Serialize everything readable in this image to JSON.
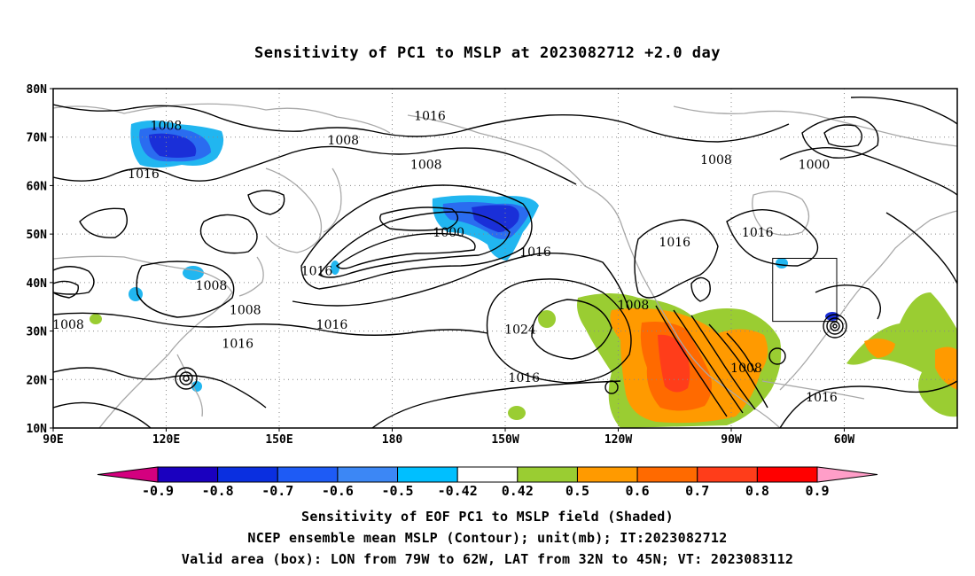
{
  "title": "Sensitivity of PC1 to MSLP at 2023082712 +2.0 day",
  "lat_ticks": [
    "10N",
    "20N",
    "30N",
    "40N",
    "50N",
    "60N",
    "70N",
    "80N"
  ],
  "lon_ticks": [
    "90E",
    "120E",
    "150E",
    "180",
    "150W",
    "120W",
    "90W",
    "60W"
  ],
  "contour_labels": [
    {
      "text": "1008",
      "lon": 120,
      "lat": 71.5
    },
    {
      "text": "1016",
      "lon": 114,
      "lat": 61.5
    },
    {
      "text": "1008",
      "lon": 167,
      "lat": 68.5
    },
    {
      "text": "1016",
      "lon": 190,
      "lat": 73.5
    },
    {
      "text": "1008",
      "lon": 189,
      "lat": 63.5
    },
    {
      "text": "1000",
      "lon": 195,
      "lat": 49.5
    },
    {
      "text": "1016",
      "lon": 160,
      "lat": 41.5
    },
    {
      "text": "1008",
      "lon": 132,
      "lat": 38.5
    },
    {
      "text": "1008",
      "lon": 94,
      "lat": 30.5
    },
    {
      "text": "1008",
      "lon": 141,
      "lat": 33.5
    },
    {
      "text": "1016",
      "lon": 139,
      "lat": 26.5
    },
    {
      "text": "1016",
      "lon": 164,
      "lat": 30.5
    },
    {
      "text": "1016",
      "lon": 218,
      "lat": 45.5
    },
    {
      "text": "1024",
      "lon": 214,
      "lat": 29.5
    },
    {
      "text": "1016",
      "lon": 215,
      "lat": 19.5
    },
    {
      "text": "1008",
      "lon": 244,
      "lat": 34.5
    },
    {
      "text": "1016",
      "lon": 255,
      "lat": 47.5
    },
    {
      "text": "1016",
      "lon": 277,
      "lat": 49.5
    },
    {
      "text": "1008",
      "lon": 274,
      "lat": 21.5
    },
    {
      "text": "1008",
      "lon": 266,
      "lat": 64.5
    },
    {
      "text": "1000",
      "lon": 292,
      "lat": 63.5
    },
    {
      "text": "1016",
      "lon": 294,
      "lat": 15.5
    }
  ],
  "valid_box": {
    "lon_min": 281,
    "lon_max": 298,
    "lat_min": 32,
    "lat_max": 45
  },
  "colorbar": {
    "labels": [
      "-0.9",
      "-0.8",
      "-0.7",
      "-0.6",
      "-0.5",
      "-0.42",
      "0.42",
      "0.5",
      "0.6",
      "0.7",
      "0.8",
      "0.9"
    ],
    "colors": [
      "#d4007f",
      "#1a00bf",
      "#0a2fe0",
      "#1e5bf5",
      "#3c87f5",
      "#00bfff",
      "#ffffff",
      "#9acd32",
      "#ff9a00",
      "#ff6a00",
      "#ff3d1a",
      "#ff0000",
      "#ff9ec8"
    ]
  },
  "shading_colors": {
    "blue_dark": "#1a2fd8",
    "blue_mid": "#2a6cf0",
    "blue_light": "#21b6f0",
    "green": "#9acd32",
    "orange": "#ff9a00",
    "orange_dark": "#ff6a00",
    "red": "#ff3d1a"
  },
  "caption": {
    "line1": "Sensitivity of EOF PC1 to MSLP field (Shaded)",
    "line2": "NCEP ensemble mean MSLP (Contour); unit(mb); IT:2023082712",
    "line3": "Valid area (box): LON from 79W to 62W, LAT from 32N to 45N; VT: 2023083112"
  }
}
